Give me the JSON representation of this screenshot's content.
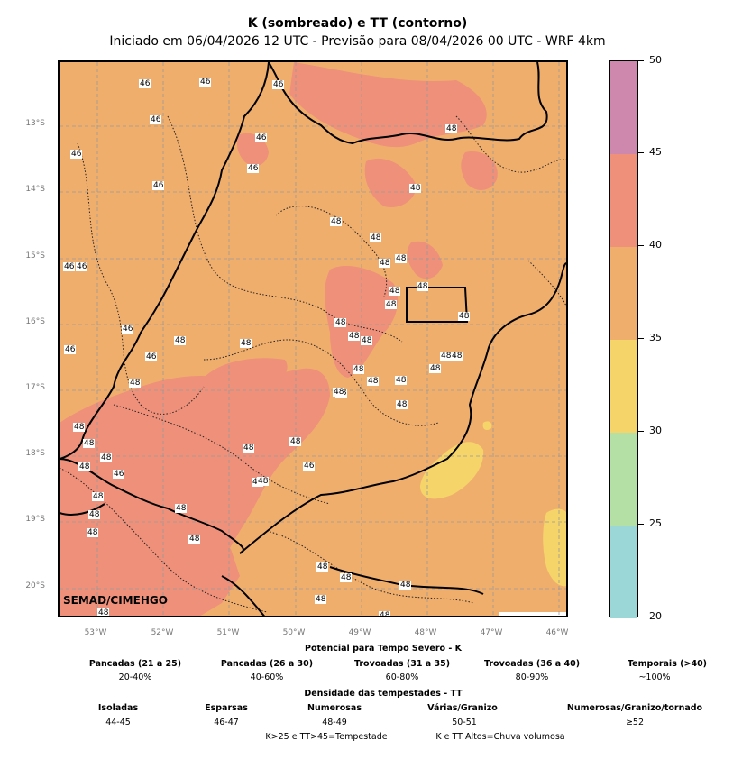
{
  "title": "K (sombreado) e TT (contorno)",
  "subtitle": "Iniciado em 06/04/2026 12 UTC - Previsão para 08/04/2026 00 UTC - WRF 4km",
  "credit": "SEMAD/CIMEHGO",
  "lat_labels": [
    "13°S",
    "14°S",
    "15°S",
    "16°S",
    "17°S",
    "18°S",
    "19°S",
    "20°S"
  ],
  "lon_labels": [
    "53°W",
    "52°W",
    "51°W",
    "50°W",
    "49°W",
    "48°W",
    "47°W",
    "46°W"
  ],
  "contour_labels": [
    "46",
    "46",
    "46",
    "46",
    "46",
    "46",
    "46",
    "48",
    "48",
    "48",
    "48",
    "48",
    "48",
    "48",
    "48",
    "48",
    "48",
    "48",
    "48",
    "48",
    "48",
    "48",
    "48",
    "46",
    "46",
    "46",
    "46",
    "46",
    "48",
    "48",
    "48",
    "48",
    "48",
    "48",
    "48",
    "48",
    "48",
    "48",
    "48",
    "48",
    "48",
    "48",
    "48",
    "48",
    "48",
    "48",
    "48",
    "48",
    "48",
    "48",
    "46",
    "46",
    "46",
    "48",
    "48",
    "48",
    "48",
    "48",
    "48"
  ],
  "colorbar": {
    "ticks": [
      "20",
      "25",
      "30",
      "35",
      "40",
      "45",
      "50"
    ],
    "colors": [
      "#9ad7d6",
      "#b5e0a5",
      "#f5d56a",
      "#f0ae6d",
      "#ee907a",
      "#cf88ad"
    ]
  },
  "legend": {
    "k_title": "Potencial para Tempo Severo - K",
    "k_items": [
      {
        "label": "Pancadas (21 a 25)",
        "value": "20-40%"
      },
      {
        "label": "Pancadas (26 a 30)",
        "value": "40-60%"
      },
      {
        "label": "Trovoadas (31 a 35)",
        "value": "60-80%"
      },
      {
        "label": "Trovoadas (36 a 40)",
        "value": "80-90%"
      },
      {
        "label": "Temporais (>40)",
        "value": "~100%"
      }
    ],
    "tt_title": "Densidade das tempestades - TT",
    "tt_items": [
      {
        "label": "Isoladas",
        "value": "44-45"
      },
      {
        "label": "Esparsas",
        "value": "46-47"
      },
      {
        "label": "Numerosas",
        "value": "48-49"
      },
      {
        "label": "Várias/Granizo",
        "value": "50-51"
      },
      {
        "label": "Numerosas/Granizo/tornado",
        "value": "≥52"
      }
    ],
    "note1": "K>25 e TT>45=Tempestade",
    "note2": "K e TT Altos=Chuva volumosa"
  }
}
